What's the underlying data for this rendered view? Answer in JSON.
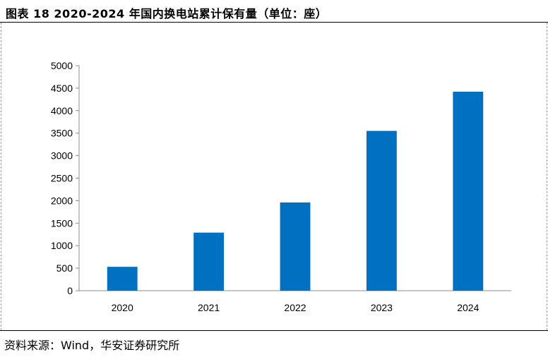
{
  "header": {
    "figure_no": "图表 18",
    "title": "2020-2024 年国内换电站累计保有量（单位：座）"
  },
  "footer": {
    "source": "资料来源：Wind，华安证券研究所"
  },
  "chart_data": {
    "type": "bar",
    "categories": [
      "2020",
      "2021",
      "2022",
      "2023",
      "2024"
    ],
    "values": [
      530,
      1290,
      1960,
      3550,
      4420
    ],
    "ylim": [
      0,
      5000
    ],
    "yticks": [
      0,
      500,
      1000,
      1500,
      2000,
      2500,
      3000,
      3500,
      4000,
      4500,
      5000
    ],
    "xlabel": "",
    "ylabel": "",
    "grid": false,
    "bar_color": "#0070C0",
    "axis_color": "#8c8c8c"
  }
}
